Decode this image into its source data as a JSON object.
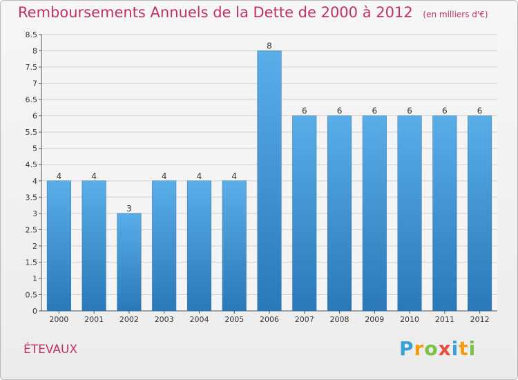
{
  "title": "Remboursements Annuels de la Dette de 2000 à 2012",
  "subtitle": "(en milliers d'€)",
  "place": "ÉTEVAUX",
  "logo": {
    "text": "Proxiti",
    "letters": [
      {
        "ch": "P",
        "color": "#3aa0d8"
      },
      {
        "ch": "r",
        "color": "#f39c12"
      },
      {
        "ch": "o",
        "color": "#7cc142"
      },
      {
        "ch": "x",
        "color": "#e74c3c"
      },
      {
        "ch": "i",
        "color": "#3aa0d8"
      },
      {
        "ch": "t",
        "color": "#f39c12"
      },
      {
        "ch": "i",
        "color": "#7cc142"
      }
    ]
  },
  "colors": {
    "bar_top": "#5aaee8",
    "bar_bottom": "#2a78b8",
    "title": "#c0325e",
    "grid": "#d0d0d0",
    "axis": "#555555"
  },
  "chart_data": {
    "type": "bar",
    "categories": [
      "2000",
      "2001",
      "2002",
      "2003",
      "2004",
      "2005",
      "2006",
      "2007",
      "2008",
      "2009",
      "2010",
      "2011",
      "2012"
    ],
    "values": [
      4,
      4,
      3,
      4,
      4,
      4,
      8,
      6,
      6,
      6,
      6,
      6,
      6
    ],
    "value_labels": [
      "4",
      "4",
      "3",
      "4",
      "4",
      "4",
      "8",
      "6",
      "6",
      "6",
      "6",
      "6",
      "6"
    ],
    "ylim": [
      0,
      8.5
    ],
    "yticks": [
      0,
      0.5,
      1,
      1.5,
      2,
      2.5,
      3,
      3.5,
      4,
      4.5,
      5,
      5.5,
      6,
      6.5,
      7,
      7.5,
      8,
      8.5
    ],
    "ytick_labels": [
      "0",
      "0.5",
      "1",
      "1.5",
      "2",
      "2.5",
      "3",
      "3.5",
      "4",
      "4.5",
      "5",
      "5.5",
      "6",
      "6.5",
      "7",
      "7.5",
      "8",
      "8.5"
    ],
    "grid": true,
    "xlabel": "",
    "ylabel": ""
  }
}
